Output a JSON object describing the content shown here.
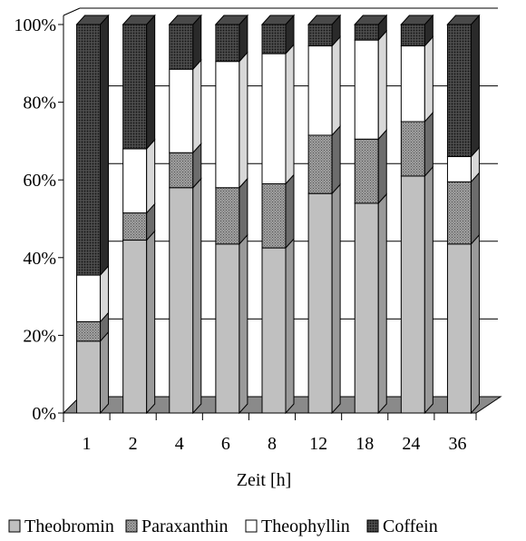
{
  "chart_data": {
    "type": "bar",
    "stacked": true,
    "percent_stacked": true,
    "three_d": true,
    "title": "",
    "xlabel": "Zeit [h]",
    "ylabel": "",
    "categories": [
      "1",
      "2",
      "4",
      "6",
      "8",
      "12",
      "18",
      "24",
      "36"
    ],
    "ylim": [
      0,
      100
    ],
    "yticks": [
      "0%",
      "20%",
      "40%",
      "60%",
      "80%",
      "100%"
    ],
    "grid": true,
    "legend_position": "bottom",
    "series": [
      {
        "name": "Theobromin",
        "color": "#c0c0c0",
        "pattern": "solid",
        "values": [
          18.5,
          44.5,
          58,
          43.5,
          42.5,
          56.5,
          54,
          61,
          43.5
        ]
      },
      {
        "name": "Paraxanthin",
        "color": "#8c8c8c",
        "pattern": "dots",
        "values": [
          5,
          7,
          9,
          14.5,
          16.5,
          15,
          16.5,
          14,
          16
        ]
      },
      {
        "name": "Theophyllin",
        "color": "#ffffff",
        "pattern": "solid",
        "values": [
          12,
          16.5,
          21.5,
          32.5,
          33.5,
          23,
          25.5,
          19.5,
          6.5
        ]
      },
      {
        "name": "Coffein",
        "color": "#3a3a3a",
        "pattern": "dots",
        "values": [
          64.5,
          32,
          11.5,
          9.5,
          7.5,
          5.5,
          4,
          5.5,
          34
        ]
      }
    ]
  }
}
